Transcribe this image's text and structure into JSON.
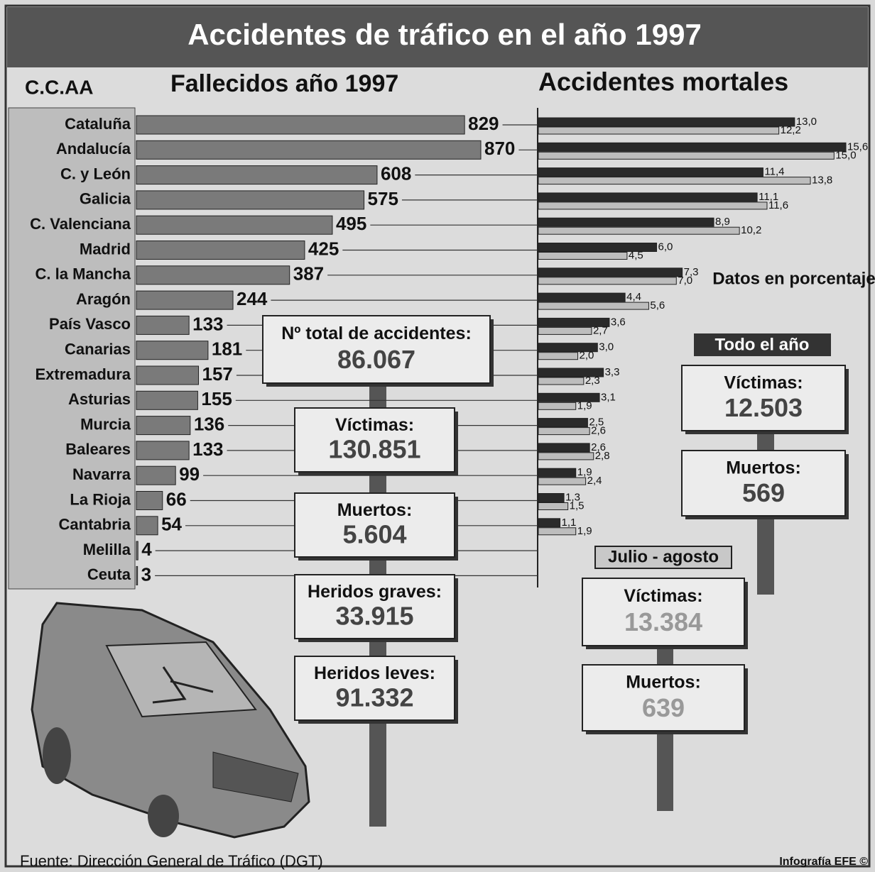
{
  "title": "Accidentes de tráfico en el año 1997",
  "region_header": "C.C.AA",
  "chart_data": [
    {
      "type": "hbar",
      "title": "Fallecidos año 1997",
      "categories": [
        "Cataluña",
        "Andalucía",
        "C. y  León",
        "Galicia",
        "C. Valenciana",
        "Madrid",
        "C. la Mancha",
        "Aragón",
        "País Vasco",
        "Canarias",
        "Extremadura",
        "Asturias",
        "Murcia",
        "Baleares",
        "Navarra",
        "La Rioja",
        "Cantabria",
        "Melilla",
        "Ceuta"
      ],
      "values": [
        829,
        870,
        608,
        575,
        495,
        425,
        387,
        244,
        133,
        181,
        157,
        155,
        136,
        133,
        99,
        66,
        54,
        4,
        3
      ],
      "color": "#7a7a7a",
      "xlim": [
        0,
        870
      ]
    },
    {
      "type": "hbar-pair",
      "title": "Accidentes mortales",
      "note": "Datos en porcentaje",
      "series": [
        {
          "color": "#2a2a2a",
          "values": [
            13.0,
            15.6,
            11.4,
            11.1,
            8.9,
            6.0,
            7.3,
            4.4,
            3.6,
            3.0,
            3.3,
            3.1,
            2.5,
            2.6,
            1.9,
            1.3,
            1.1,
            null,
            null
          ],
          "value_labels": [
            "13,0",
            "15,6",
            "11,4",
            "11,1",
            "8,9",
            "6,0",
            "7,3",
            "4,4",
            "3,6",
            "3,0",
            "3,3",
            "3,1",
            "2,5",
            "2,6",
            "1,9",
            "1,3",
            "1,1",
            null,
            null
          ]
        },
        {
          "color": "#bdbdbd",
          "values": [
            12.2,
            15.0,
            13.8,
            11.6,
            10.2,
            4.5,
            7.0,
            5.6,
            2.7,
            2.0,
            2.3,
            1.9,
            2.6,
            2.8,
            2.4,
            1.5,
            1.9,
            null,
            null
          ],
          "value_labels": [
            "12,2",
            "15,0",
            "13,8",
            "11,6",
            "10,2",
            "4,5",
            "7,0",
            "5,6",
            "2,7",
            "2,0",
            "2,3",
            "1,9",
            "2,6",
            "2,8",
            "2,4",
            "1,5",
            "1,9",
            null,
            null
          ]
        }
      ],
      "xlim": [
        0,
        15.6
      ]
    }
  ],
  "totals": {
    "boxes": [
      {
        "label": "Nº total de accidentes:",
        "value": "86.067"
      },
      {
        "label": "Víctimas:",
        "value": "130.851"
      },
      {
        "label": "Muertos:",
        "value": "5.604"
      },
      {
        "label": "Heridos graves:",
        "value": "33.915"
      },
      {
        "label": "Heridos leves:",
        "value": "91.332"
      }
    ]
  },
  "todo_el_ano": {
    "title": "Todo el año",
    "boxes": [
      {
        "label": "Víctimas:",
        "value": "12.503"
      },
      {
        "label": "Muertos:",
        "value": "569"
      }
    ]
  },
  "julio_agosto": {
    "title": "Julio - agosto",
    "boxes": [
      {
        "label": "Víctimas:",
        "value": "13.384"
      },
      {
        "label": "Muertos:",
        "value": "639"
      }
    ]
  },
  "source": "Fuente: Dirección General de Tráfico (DGT)",
  "credit": "Infografía EFE ©"
}
